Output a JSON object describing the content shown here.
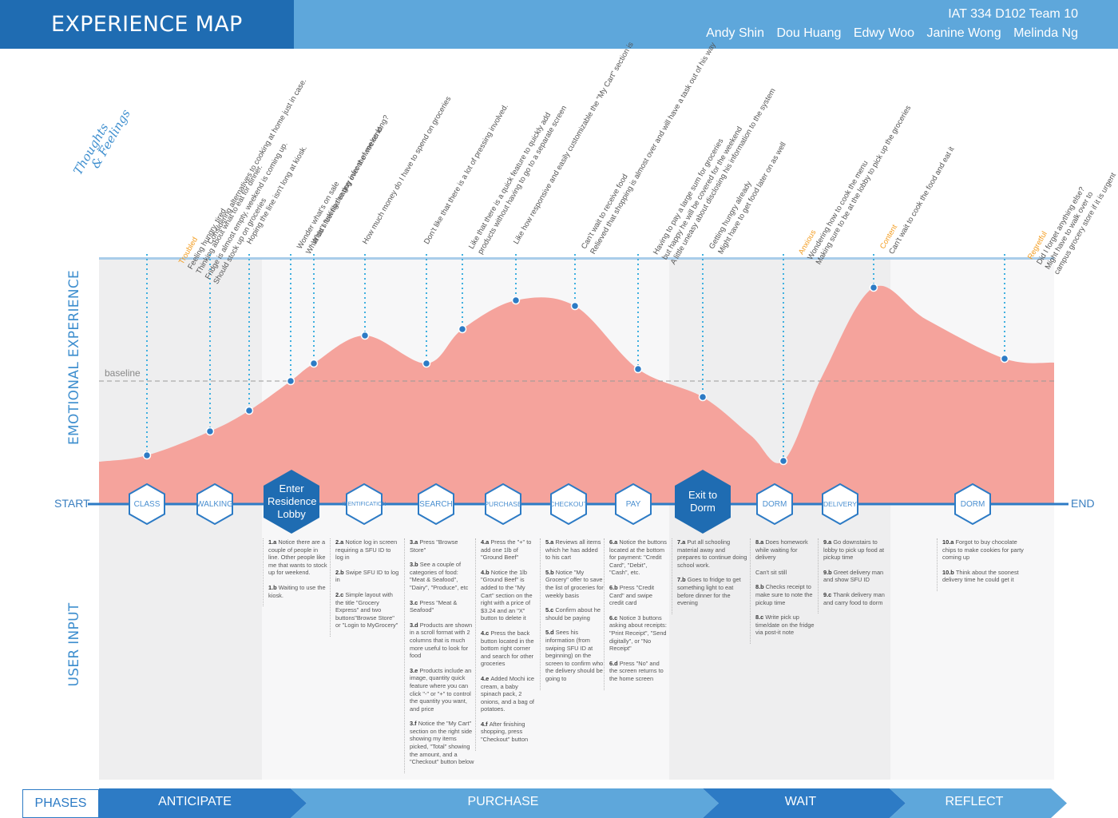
{
  "header": {
    "title": "EXPERIENCE MAP",
    "team": "IAT 334 D102 Team 10",
    "members": [
      "Andy Shin",
      "Dou Huang",
      "Edwy Woo",
      "Janine Wong",
      "Melinda Ng"
    ]
  },
  "labels": {
    "thoughts_line1": "Thoughts",
    "thoughts_line2": "& Feelings",
    "emotional": "EMOTIONAL EXPERIENCE",
    "user_input": "USER INPUT",
    "baseline": "baseline",
    "start": "START",
    "end": "END",
    "phases": "PHASES"
  },
  "colors": {
    "header_dark": "#1f6cb2",
    "header_light": "#5ea7db",
    "curve_fill": "#f5a39c",
    "accent": "#3f8fcf",
    "mood": "#f39c1f"
  },
  "steps": [
    "CLASS",
    "WALKING",
    "Enter Residence Lobby",
    "IDENTIFICATION",
    "SEARCH",
    "PURCHASE",
    "CHECKOUT",
    "PAY",
    "Exit to Dorm",
    "DORM",
    "DELIVERY",
    "DORM"
  ],
  "thoughts": [
    {
      "mood": "Troubled",
      "lines": [
        "Feeling hungry, tired",
        "Thinking about what to eat for dinner.",
        "Fridge is almost empty, weekend is coming up.",
        "Should stock up on groceries"
      ]
    },
    {
      "mood": "",
      "lines": [
        "Considering alternatives to cooking at home just in case."
      ]
    },
    {
      "mood": "",
      "lines": [
        "Hoping the line isn't long at kiosk."
      ]
    },
    {
      "mood": "",
      "lines": [
        "Wonder what's on sale",
        "What do I feel like eating over the weekend."
      ]
    },
    {
      "mood": "",
      "lines": [
        "What's taking the guy infront of me so long?"
      ]
    },
    {
      "mood": "",
      "lines": [
        "How much money do I have to spend on groceries"
      ]
    },
    {
      "mood": "",
      "lines": [
        "Don't like that there is a lot of pressing involved."
      ]
    },
    {
      "mood": "",
      "lines": [
        "Like that there is a quick feature to quickly add",
        "products without having to go to a separate screen"
      ]
    },
    {
      "mood": "",
      "lines": [
        "Like how responsive and easily customizable the \"My Cart\" section is"
      ]
    },
    {
      "mood": "",
      "lines": [
        "Can't wait to receive food",
        "Relieved that shopping is almost over and will have a task out of his way"
      ]
    },
    {
      "mood": "",
      "lines": [
        "Having to pay a large sum for groceries",
        "but happy he will be covered for the weekend",
        "A little uneasy about disclosing his information to the system"
      ]
    },
    {
      "mood": "",
      "lines": [
        "Getting hungry already",
        "Might have to get food later on as well"
      ]
    },
    {
      "mood": "Anxious",
      "lines": [
        "Wondering how to cook the menu",
        "Making sure to be at the lobby to pick up the groceries"
      ]
    },
    {
      "mood": "Content",
      "lines": [
        "Can't wait to cook the food and eat it"
      ]
    },
    {
      "mood": "Regretful",
      "lines": [
        "Did I forget anything else?",
        "Might have to walk over to",
        "campus grocery store if it is urgent"
      ]
    }
  ],
  "user_input": [
    [
      {
        "k": "1.a",
        "t": "Notice there are a couple of people in line. Other people like me that wants to stock up for weekend."
      },
      {
        "k": "1.b",
        "t": "Waiting to use the kiosk."
      }
    ],
    [
      {
        "k": "2.a",
        "t": "Notice log in screen requiring a SFU ID to log in"
      },
      {
        "k": "2.b",
        "t": "Swipe SFU ID to log in"
      },
      {
        "k": "2.c",
        "t": "Simple layout with the title \"Grocery Express\" and two buttons\"Browse Store\" or \"Login to MyGrocery\""
      }
    ],
    [
      {
        "k": "3.a",
        "t": "Press \"Browse Store\""
      },
      {
        "k": "3.b",
        "t": "See a couple of categories of food: \"Meat & Seafood\", \"Dairy\", \"Produce\", etc"
      },
      {
        "k": "3.c",
        "t": "Press \"Meat & Seafood\""
      },
      {
        "k": "3.d",
        "t": "Products are shown in a scroll format with 2 columns that is much more useful to look for food"
      },
      {
        "k": "3.e",
        "t": "Products include an image, quantity quick feature where you can click \"-\" or \"+\" to control the quantity you want, and price"
      },
      {
        "k": "3.f",
        "t": "Notice the \"My Cart\" section on the right side showing my items picked, \"Total\" showing the amount, and a \"Checkout\" button below"
      }
    ],
    [
      {
        "k": "4.a",
        "t": "Press the \"+\" to add one 1lb of \"Ground Beef\""
      },
      {
        "k": "4.b",
        "t": "Notice the 1lb \"Ground Beef\" is added to the \"My Cart\" section on the right with a price of $3.24 and an \"X\" button to delete it"
      },
      {
        "k": "4.c",
        "t": "Press the back button located in the bottom right corner and search for other groceries"
      },
      {
        "k": "4.e",
        "t": "Added Mochi ice cream, a baby spinach pack, 2 onions, and a bag of potatoes."
      },
      {
        "k": "4.f",
        "t": "After finishing shopping, press \"Checkout\" button"
      }
    ],
    [
      {
        "k": "5.a",
        "t": "Reviews all items which he has added to his cart"
      },
      {
        "k": "5.b",
        "t": "Notice \"My Grocery\" offer to save the list of groceries for weekly basis"
      },
      {
        "k": "5.c",
        "t": "Confirm about he should be paying"
      },
      {
        "k": "5.d",
        "t": "Sees his information (from swiping SFU ID at beginning) on the screen to confirm who the delivery should be going to"
      }
    ],
    [
      {
        "k": "6.a",
        "t": "Notice the buttons located at the bottom for payment: \"Credit Card\", \"Debit\", \"Cash\", etc."
      },
      {
        "k": "6.b",
        "t": "Press \"Credit Card\" and swipe credit card"
      },
      {
        "k": "6.c",
        "t": "Notice 3 buttons asking about receipts: \"Print Receipt\", \"Send digitally\", or \"No Receipt\""
      },
      {
        "k": "6.d",
        "t": "Press \"No\" and the screen returns to the home screen"
      }
    ],
    [
      {
        "k": "7.a",
        "t": "Put all schooling material away and prepares to continue doing school work."
      },
      {
        "k": "7.b",
        "t": "Goes to fridge to get something light to eat before dinner for the evening"
      }
    ],
    [
      {
        "k": "8.a",
        "t": "Does homework while waiting for delivery"
      },
      {
        "k": "",
        "t": "Can't sit still"
      },
      {
        "k": "8.b",
        "t": "Checks receipt to make sure to note the pickup time"
      },
      {
        "k": "8.c",
        "t": "Write pick up time/date on the fridge via post-it note"
      }
    ],
    [
      {
        "k": "9.a",
        "t": "Go downstairs to lobby to pick up food at pickup time"
      },
      {
        "k": "9.b",
        "t": "Greet delivery man and show SFU ID"
      },
      {
        "k": "9.c",
        "t": "Thank delivery man and carry food to dorm"
      }
    ],
    [
      {
        "k": "10.a",
        "t": "Forgot to buy chocolate chips to make cookies for party coming up"
      },
      {
        "k": "10.b",
        "t": "Think about the soonest delivery time he could get it"
      }
    ]
  ],
  "phases": [
    "ANTICIPATE",
    "PURCHASE",
    "WAIT",
    "REFLECT"
  ]
}
